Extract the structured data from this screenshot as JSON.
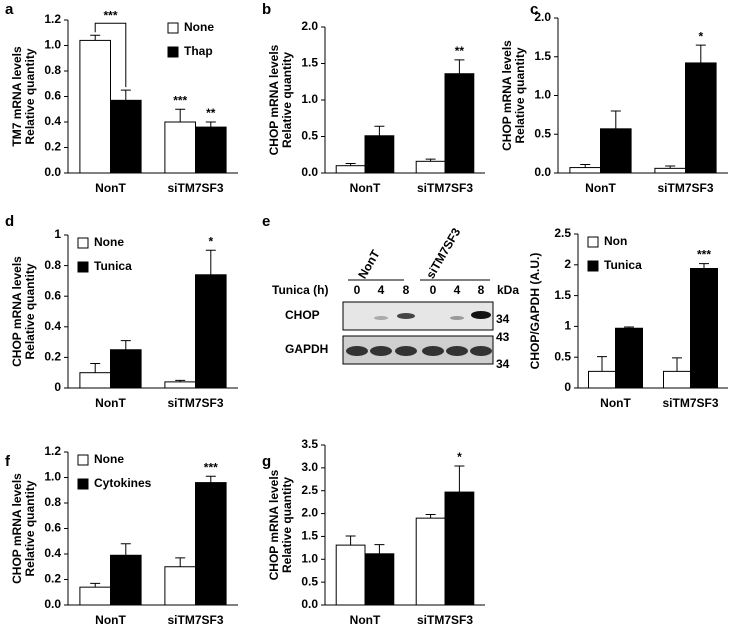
{
  "chart_data": [
    {
      "type": "bar",
      "panel": "a",
      "y_label": [
        "TM7 mRNA levels",
        "Relative quantity"
      ],
      "categories": [
        "NonT",
        "siTM7SF3"
      ],
      "series": [
        {
          "name": "None",
          "color": "#ffffff",
          "values": [
            1.04,
            0.4
          ],
          "errors": [
            0.04,
            0.1
          ]
        },
        {
          "name": "Thap",
          "color": "#000000",
          "values": [
            0.57,
            0.36
          ],
          "errors": [
            0.08,
            0.04
          ]
        }
      ],
      "ylim": [
        0,
        1.2
      ],
      "yticks": [
        {
          "value": 0,
          "label": "0.0"
        },
        0.2,
        0.4,
        0.6,
        0.8,
        {
          "value": 1,
          "label": "1.0"
        },
        1.2
      ],
      "annotations": [
        "***",
        "***",
        "**"
      ],
      "legend": "upper right"
    },
    {
      "type": "bar",
      "panel": "b",
      "y_label": [
        "CHOP mRNA levels",
        "Relative quantity"
      ],
      "categories": [
        "NonT",
        "siTM7SF3"
      ],
      "series": [
        {
          "color": "#ffffff",
          "values": [
            0.1,
            0.16
          ],
          "errors": [
            0.03,
            0.03
          ]
        },
        {
          "color": "#000000",
          "values": [
            0.51,
            1.36
          ],
          "errors": [
            0.13,
            0.19
          ]
        }
      ],
      "ylim": [
        0,
        2
      ],
      "yticks": [
        {
          "value": 0,
          "label": "0.0"
        },
        0.5,
        {
          "value": 1,
          "label": "1.0"
        },
        1.5,
        {
          "value": 2,
          "label": "2.0"
        }
      ],
      "annotations": [
        "**"
      ]
    },
    {
      "type": "bar",
      "panel": "c",
      "y_label": [
        "CHOP mRNA levels",
        "Relative quantity"
      ],
      "categories": [
        "NonT",
        "siTM7SF3"
      ],
      "series": [
        {
          "color": "#ffffff",
          "values": [
            0.07,
            0.06
          ],
          "errors": [
            0.04,
            0.03
          ]
        },
        {
          "color": "#000000",
          "values": [
            0.57,
            1.42
          ],
          "errors": [
            0.23,
            0.23
          ]
        }
      ],
      "ylim": [
        0,
        2
      ],
      "yticks": [
        {
          "value": 0,
          "label": "0.0"
        },
        0.5,
        {
          "value": 1,
          "label": "1.0"
        },
        1.5,
        {
          "value": 2,
          "label": "2.0"
        }
      ],
      "annotations": [
        "*"
      ]
    },
    {
      "type": "bar",
      "panel": "d",
      "y_label": [
        "CHOP mRNA levels",
        "Relative quantity"
      ],
      "categories": [
        "NonT",
        "siTM7SF3"
      ],
      "series": [
        {
          "name": "None",
          "color": "#ffffff",
          "values": [
            0.1,
            0.04
          ],
          "errors": [
            0.06,
            0.01
          ]
        },
        {
          "name": "Tunica",
          "color": "#000000",
          "values": [
            0.25,
            0.74
          ],
          "errors": [
            0.06,
            0.16
          ]
        }
      ],
      "ylim": [
        0,
        1
      ],
      "yticks": [
        0,
        0.2,
        0.4,
        0.6,
        0.8,
        1
      ],
      "annotations": [
        "*"
      ],
      "legend": "upper left"
    },
    {
      "type": "bar",
      "y_label": [
        "CHOP/GAPDH (A.U.)"
      ],
      "categories": [
        "NonT",
        "siTM7SF3"
      ],
      "series": [
        {
          "name": "Non",
          "color": "#ffffff",
          "values": [
            0.27,
            0.27
          ],
          "errors": [
            0.24,
            0.22
          ]
        },
        {
          "name": "Tunica",
          "color": "#000000",
          "values": [
            0.97,
            1.94
          ],
          "errors": [
            0.02,
            0.08
          ]
        }
      ],
      "ylim": [
        0,
        2.5
      ],
      "yticks": [
        0,
        0.5,
        1,
        1.5,
        2,
        2.5
      ],
      "annotations": [
        "***"
      ],
      "legend": "upper left"
    },
    {
      "type": "bar",
      "panel": "f",
      "y_label": [
        "CHOP mRNA levels",
        "Relative quantity"
      ],
      "categories": [
        "NonT",
        "siTM7SF3"
      ],
      "series": [
        {
          "name": "None",
          "color": "#ffffff",
          "values": [
            0.14,
            0.3
          ],
          "errors": [
            0.03,
            0.07
          ]
        },
        {
          "name": "Cytokines",
          "color": "#000000",
          "values": [
            0.39,
            0.96
          ],
          "errors": [
            0.09,
            0.05
          ]
        }
      ],
      "ylim": [
        0,
        1.2
      ],
      "yticks": [
        {
          "value": 0,
          "label": "0.0"
        },
        0.2,
        0.4,
        0.6,
        0.8,
        {
          "value": 1,
          "label": "1.0"
        },
        1.2
      ],
      "annotations": [
        "***"
      ],
      "legend": "upper left"
    },
    {
      "type": "bar",
      "panel": "g",
      "y_label": [
        "CHOP mRNA levels",
        "Relative quantity"
      ],
      "categories": [
        "NonT",
        "siTM7SF3"
      ],
      "series": [
        {
          "color": "#ffffff",
          "values": [
            1.31,
            1.9
          ],
          "errors": [
            0.2,
            0.08
          ]
        },
        {
          "color": "#000000",
          "values": [
            1.12,
            2.47
          ],
          "errors": [
            0.2,
            0.57
          ]
        }
      ],
      "ylim": [
        0,
        3.5
      ],
      "yticks": [
        {
          "value": 0,
          "label": "0.0"
        },
        0.5,
        {
          "value": 1,
          "label": "1.0"
        },
        1.5,
        {
          "value": 2,
          "label": "2.0"
        },
        2.5,
        {
          "value": 3,
          "label": "3.0"
        },
        3.5
      ],
      "annotations": [
        "*"
      ]
    }
  ],
  "blot": {
    "panel": "e",
    "groups": [
      "NonT",
      "siTM7SF3"
    ],
    "treatment": "Tunica (h)",
    "lanes": [
      "0",
      "4",
      "8",
      "0",
      "4",
      "8"
    ],
    "unit": "kDa",
    "rows": [
      "CHOP",
      "GAPDH"
    ],
    "markers": [
      "34",
      "43",
      "34"
    ]
  }
}
